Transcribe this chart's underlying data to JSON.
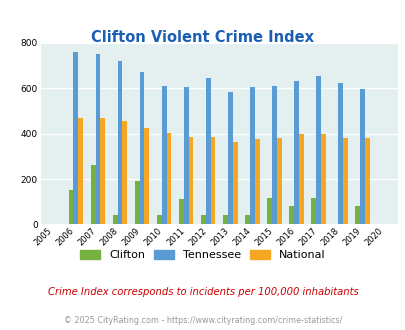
{
  "title": "Clifton Violent Crime Index",
  "years": [
    2005,
    2006,
    2007,
    2008,
    2009,
    2010,
    2011,
    2012,
    2013,
    2014,
    2015,
    2016,
    2017,
    2018,
    2019,
    2020
  ],
  "clifton": [
    0,
    152,
    260,
    40,
    190,
    40,
    110,
    40,
    40,
    40,
    115,
    80,
    115,
    0,
    80,
    0
  ],
  "tennessee": [
    0,
    760,
    750,
    720,
    670,
    610,
    607,
    645,
    585,
    607,
    610,
    632,
    655,
    622,
    598,
    0
  ],
  "national": [
    0,
    470,
    468,
    455,
    425,
    401,
    387,
    387,
    365,
    375,
    383,
    397,
    400,
    383,
    381,
    0
  ],
  "clifton_color": "#76b041",
  "tennessee_color": "#5b9bd5",
  "national_color": "#f5a623",
  "bg_color": "#e4f0f0",
  "ylim": [
    0,
    800
  ],
  "yticks": [
    0,
    200,
    400,
    600,
    800
  ],
  "note": "Crime Index corresponds to incidents per 100,000 inhabitants",
  "footer": "© 2025 CityRating.com - https://www.cityrating.com/crime-statistics/",
  "note_color": "#cc0000",
  "footer_color": "#999999",
  "title_color": "#1a5fb4"
}
